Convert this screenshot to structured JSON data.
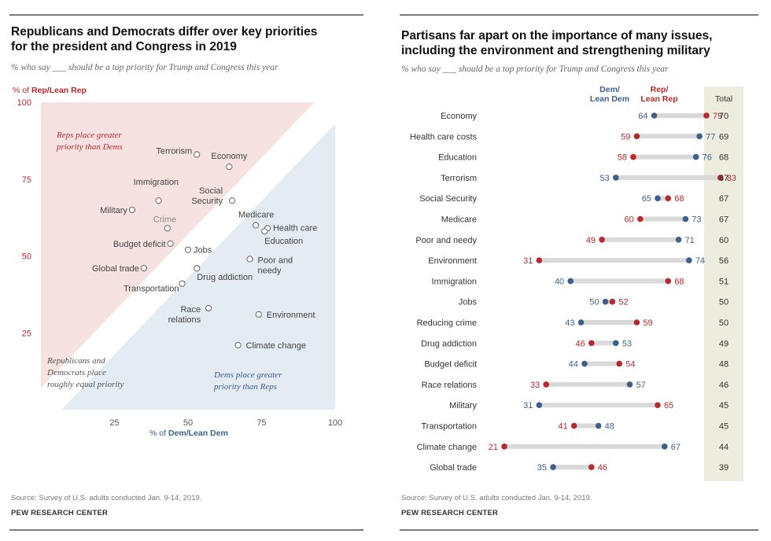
{
  "colors": {
    "rep": "#b8292f",
    "dem": "#3d5f8a",
    "rep_zone": "#f6e2e0",
    "dem_zone": "#e4ebf3",
    "total_bg": "#ededdf",
    "line": "#d9d9d9"
  },
  "left": {
    "title_line1": "Republicans and Democrats differ over key priorities",
    "title_line2": "for the president and Congress in 2019",
    "subtitle": "% who say ___ should be a top priority for Trump and Congress this year",
    "source": "Source: Survey of U.S. adults conducted Jan. 9-14, 2019.",
    "credit": "PEW RESEARCH CENTER"
  },
  "right": {
    "title_line1": "Partisans far apart on the importance of many issues,",
    "title_line2": "including the environment and strengthening military",
    "subtitle": "% who say ___ should be a top priority for Trump and Congress this year",
    "source": "Source: Survey of U.S. adults conducted Jan. 9-14, 2019.",
    "credit": "PEW RESEARCH CENTER"
  },
  "chart_data": [
    {
      "type": "scatter",
      "ylabel_prefix": "% of ",
      "ylabel_emph": "Rep/Lean Rep",
      "xlabel_prefix": "% of ",
      "xlabel_emph": "Dem/Lean Dem",
      "xlim": [
        0,
        100
      ],
      "ylim": [
        0,
        100
      ],
      "xticks": [
        "25",
        "50",
        "75",
        "100"
      ],
      "yticks": [
        "100",
        "75",
        "50",
        "25"
      ],
      "annotations": {
        "rep_zone": [
          "Reps place greater",
          "priority than Dems"
        ],
        "equal_zone": [
          "Republicans and",
          "Democrats place",
          "roughly equal priority"
        ],
        "dem_zone": [
          "Dems place greater",
          "priority than Reps"
        ]
      },
      "points": [
        {
          "label": "Economy",
          "x": 64,
          "y": 79
        },
        {
          "label": "Health care costs",
          "lines": [
            "Health care"
          ],
          "x": 77,
          "y": 59
        },
        {
          "label": "Education",
          "x": 76,
          "y": 58
        },
        {
          "label": "Terrorism",
          "x": 53,
          "y": 83
        },
        {
          "label": "Social Security",
          "lines": [
            "Social",
            "Security"
          ],
          "x": 65,
          "y": 68
        },
        {
          "label": "Medicare",
          "x": 73,
          "y": 60
        },
        {
          "label": "Poor and needy",
          "lines": [
            "Poor and",
            "needy"
          ],
          "x": 71,
          "y": 49
        },
        {
          "label": "Environment",
          "x": 74,
          "y": 31
        },
        {
          "label": "Immigration",
          "x": 40,
          "y": 68
        },
        {
          "label": "Jobs",
          "x": 50,
          "y": 52
        },
        {
          "label": "Crime",
          "x": 43,
          "y": 59
        },
        {
          "label": "Drug addiction",
          "x": 53,
          "y": 46
        },
        {
          "label": "Budget deficit",
          "x": 44,
          "y": 54
        },
        {
          "label": "Race relations",
          "lines": [
            "Race",
            "relations"
          ],
          "x": 57,
          "y": 33
        },
        {
          "label": "Military",
          "x": 31,
          "y": 65
        },
        {
          "label": "Transportation",
          "x": 48,
          "y": 41
        },
        {
          "label": "Climate change",
          "x": 67,
          "y": 21
        },
        {
          "label": "Global trade",
          "x": 35,
          "y": 46
        }
      ]
    },
    {
      "type": "dot",
      "header_dem": [
        "Dem/",
        "Lean Dem"
      ],
      "header_rep": [
        "Rep/",
        "Lean Rep"
      ],
      "header_total": "Total",
      "rows": [
        {
          "issue": "Economy",
          "dem": 64,
          "rep": 79,
          "total": 70
        },
        {
          "issue": "Health care costs",
          "dem": 77,
          "rep": 59,
          "total": 69
        },
        {
          "issue": "Education",
          "dem": 76,
          "rep": 58,
          "total": 68
        },
        {
          "issue": "Terrorism",
          "dem": 53,
          "rep": 83,
          "total": 67
        },
        {
          "issue": "Social Security",
          "dem": 65,
          "rep": 68,
          "total": 67
        },
        {
          "issue": "Medicare",
          "dem": 73,
          "rep": 60,
          "total": 67
        },
        {
          "issue": "Poor and needy",
          "dem": 71,
          "rep": 49,
          "total": 60
        },
        {
          "issue": "Environment",
          "dem": 74,
          "rep": 31,
          "total": 56
        },
        {
          "issue": "Immigration",
          "dem": 40,
          "rep": 68,
          "total": 51
        },
        {
          "issue": "Jobs",
          "dem": 50,
          "rep": 52,
          "total": 50
        },
        {
          "issue": "Reducing crime",
          "dem": 43,
          "rep": 59,
          "total": 50
        },
        {
          "issue": "Drug addiction",
          "dem": 53,
          "rep": 46,
          "total": 49
        },
        {
          "issue": "Budget deficit",
          "dem": 44,
          "rep": 54,
          "total": 48
        },
        {
          "issue": "Race relations",
          "dem": 57,
          "rep": 33,
          "total": 46
        },
        {
          "issue": "Military",
          "dem": 31,
          "rep": 65,
          "total": 45
        },
        {
          "issue": "Transportation",
          "dem": 48,
          "rep": 41,
          "total": 45
        },
        {
          "issue": "Climate change",
          "dem": 67,
          "rep": 21,
          "total": 44
        },
        {
          "issue": "Global trade",
          "dem": 35,
          "rep": 46,
          "total": 39
        }
      ]
    }
  ]
}
